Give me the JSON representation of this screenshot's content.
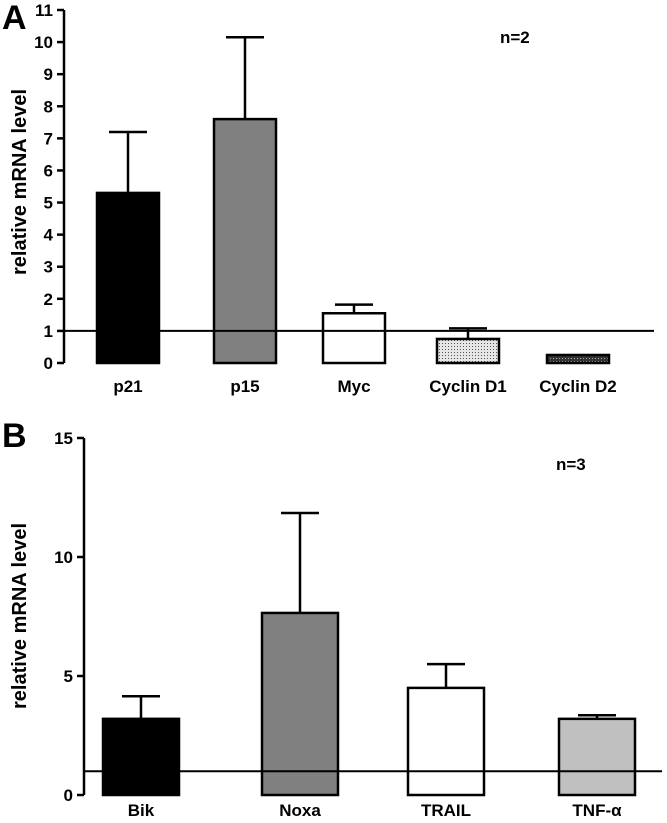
{
  "chart_data": [
    {
      "panel": "A",
      "type": "bar",
      "annotation": "n=2",
      "ylabel": "relative mRNA level",
      "ylim": [
        0,
        11
      ],
      "yticks": [
        "0",
        "1",
        "2",
        "3",
        "4",
        "5",
        "6",
        "7",
        "8",
        "9",
        "10",
        "11"
      ],
      "reference_line": 1,
      "categories": [
        "p21",
        "p15",
        "Myc",
        "Cyclin D1",
        "Cyclin D2"
      ],
      "values": [
        5.3,
        7.6,
        1.55,
        0.75,
        0.25
      ],
      "errors": [
        1.9,
        2.55,
        0.27,
        0.33,
        0
      ],
      "fills": [
        "#000000",
        "#808080",
        "#ffffff",
        "dotted-light",
        "dotted-dark"
      ]
    },
    {
      "panel": "B",
      "type": "bar",
      "annotation": "n=3",
      "ylabel": "relative mRNA level",
      "ylim": [
        0,
        15
      ],
      "yticks": [
        "0",
        "5",
        "10",
        "15"
      ],
      "reference_line": 1,
      "categories": [
        "Bik",
        "Noxa",
        "TRAIL",
        "TNF-α"
      ],
      "values": [
        3.2,
        7.65,
        4.5,
        3.2
      ],
      "errors": [
        0.95,
        4.2,
        1.0,
        0.15
      ],
      "fills": [
        "#000000",
        "#808080",
        "#ffffff",
        "#c0c0c0"
      ]
    }
  ]
}
